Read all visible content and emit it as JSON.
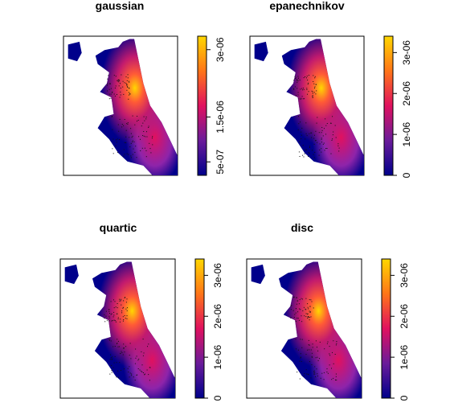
{
  "chart_data": [
    {
      "type": "heatmap",
      "title": "gaussian",
      "colorbar": {
        "ticks": [
          "5e-07",
          "1.5e-06",
          "3e-06"
        ],
        "tick_values": [
          5e-07,
          1.5e-06,
          3e-06
        ],
        "range": [
          2e-07,
          3.3e-06
        ]
      },
      "colors": [
        "#00008b",
        "#7b1fa2",
        "#e91e63",
        "#ff7f00",
        "#ffd700"
      ]
    },
    {
      "type": "heatmap",
      "title": "epanechnikov",
      "colorbar": {
        "ticks": [
          "0",
          "1e-06",
          "2e-06",
          "3e-06"
        ],
        "tick_values": [
          0,
          1e-06,
          2e-06,
          3e-06
        ],
        "range": [
          0,
          3.4e-06
        ]
      },
      "colors": [
        "#00008b",
        "#7b1fa2",
        "#e91e63",
        "#ff7f00",
        "#ffd700"
      ]
    },
    {
      "type": "heatmap",
      "title": "quartic",
      "colorbar": {
        "ticks": [
          "0",
          "1e-06",
          "2e-06",
          "3e-06"
        ],
        "tick_values": [
          0,
          1e-06,
          2e-06,
          3e-06
        ],
        "range": [
          0,
          3.4e-06
        ]
      },
      "colors": [
        "#00008b",
        "#7b1fa2",
        "#e91e63",
        "#ff7f00",
        "#ffd700"
      ]
    },
    {
      "type": "heatmap",
      "title": "disc",
      "colorbar": {
        "ticks": [
          "0",
          "1e-06",
          "2e-06",
          "3e-06"
        ],
        "tick_values": [
          0,
          1e-06,
          2e-06,
          3e-06
        ],
        "range": [
          0,
          3.4e-06
        ]
      },
      "colors": [
        "#00008b",
        "#7b1fa2",
        "#e91e63",
        "#ff7f00",
        "#ffd700"
      ]
    }
  ]
}
